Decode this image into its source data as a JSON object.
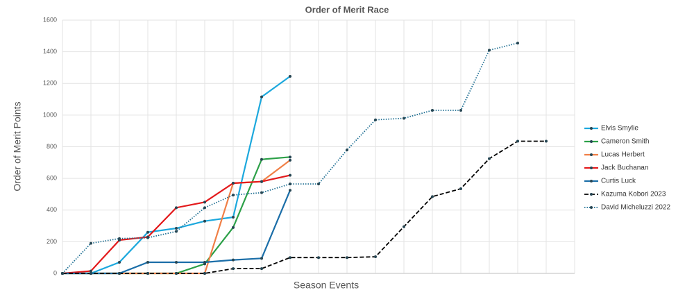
{
  "chart_data": {
    "type": "line",
    "title": "Order of Merit Race",
    "x_label": "Season Events",
    "y_label": "Order of Merit Points",
    "categories": [
      null,
      null,
      null,
      null,
      null,
      null,
      null,
      null,
      null,
      null,
      null,
      null,
      null,
      null,
      null,
      null,
      null,
      null
    ],
    "ylim": [
      0,
      1600
    ],
    "yticks": [
      0,
      200,
      400,
      600,
      800,
      1000,
      1200,
      1400,
      1600
    ],
    "grid": true,
    "legend": "right",
    "series": [
      {
        "name": "Elvis Smylie",
        "color": "#1ca8dd",
        "line_style": "solid",
        "values": [
          0,
          0,
          70,
          260,
          285,
          330,
          355,
          1115,
          1245,
          null,
          null,
          null,
          null,
          null,
          null,
          null,
          null,
          null
        ]
      },
      {
        "name": "Cameron Smith",
        "color": "#2ca048",
        "line_style": "solid",
        "values": [
          0,
          0,
          0,
          0,
          0,
          60,
          290,
          720,
          735,
          null,
          null,
          null,
          null,
          null,
          null,
          null,
          null,
          null
        ]
      },
      {
        "name": "Lucas Herbert",
        "color": "#f07f46",
        "line_style": "solid",
        "values": [
          0,
          0,
          0,
          0,
          0,
          0,
          570,
          580,
          715,
          null,
          null,
          null,
          null,
          null,
          null,
          null,
          null,
          null
        ]
      },
      {
        "name": "Jack Buchanan",
        "color": "#e31a1c",
        "line_style": "solid",
        "values": [
          0,
          15,
          210,
          230,
          415,
          450,
          570,
          580,
          620,
          null,
          null,
          null,
          null,
          null,
          null,
          null,
          null,
          null
        ]
      },
      {
        "name": "Curtis Luck",
        "color": "#1b6ea8",
        "line_style": "solid",
        "values": [
          0,
          0,
          0,
          70,
          70,
          70,
          85,
          95,
          525,
          null,
          null,
          null,
          null,
          null,
          null,
          null,
          null,
          null
        ]
      },
      {
        "name": "Kazuma Kobori 2023",
        "color": "#000000",
        "line_style": "dashed",
        "values": [
          0,
          0,
          0,
          0,
          0,
          0,
          30,
          30,
          100,
          100,
          100,
          105,
          295,
          485,
          535,
          725,
          835,
          835
        ]
      },
      {
        "name": "David Micheluzzi 2022",
        "color": "#1f6f93",
        "line_style": "dotted",
        "values": [
          0,
          190,
          220,
          225,
          265,
          415,
          495,
          510,
          565,
          565,
          780,
          970,
          980,
          1030,
          1030,
          1410,
          1455,
          null
        ]
      }
    ]
  }
}
